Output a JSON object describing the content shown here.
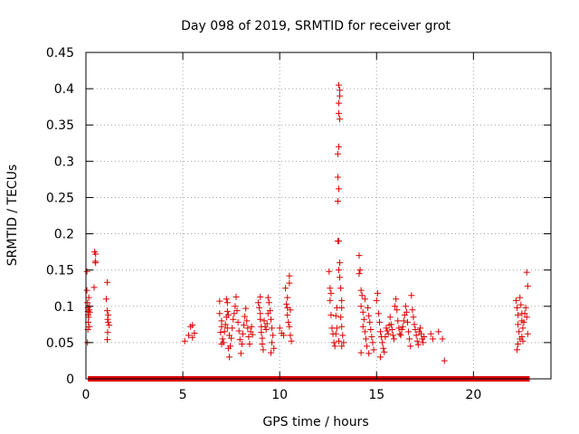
{
  "chart_data": {
    "type": "scatter",
    "title": "Day 098 of 2019, SRMTID for receiver grot",
    "xlabel": "GPS time / hours",
    "ylabel": "SRMTID / TECUs",
    "xlim": [
      0,
      24
    ],
    "ylim": [
      0,
      0.45
    ],
    "xticks": [
      0,
      5,
      10,
      15,
      20
    ],
    "xtick_labels": [
      "0",
      "5",
      "10",
      "15",
      "20"
    ],
    "yticks": [
      0,
      0.05,
      0.1,
      0.15,
      0.2,
      0.25,
      0.3,
      0.35,
      0.4,
      0.45
    ],
    "ytick_labels": [
      "0",
      "0.05",
      "0.1",
      "0.15",
      "0.2",
      "0.25",
      "0.3",
      "0.35",
      "0.4",
      "0.45"
    ],
    "grid": true,
    "marker": "+",
    "color": "#dd0000",
    "zero_band": {
      "x_start": 0.1,
      "x_end": 22.9,
      "y": 0
    },
    "points": [
      [
        0.05,
        0.148
      ],
      [
        0.05,
        0.122
      ],
      [
        0.08,
        0.105
      ],
      [
        0.1,
        0.098
      ],
      [
        0.1,
        0.093
      ],
      [
        0.12,
        0.088
      ],
      [
        0.12,
        0.078
      ],
      [
        0.1,
        0.068
      ],
      [
        0.08,
        0.05
      ],
      [
        0.15,
        0.112
      ],
      [
        0.14,
        0.085
      ],
      [
        0.16,
        0.095
      ],
      [
        0.18,
        0.1
      ],
      [
        0.2,
        0.092
      ],
      [
        0.18,
        0.072
      ],
      [
        0.45,
        0.175
      ],
      [
        0.5,
        0.172
      ],
      [
        0.48,
        0.162
      ],
      [
        0.5,
        0.16
      ],
      [
        0.42,
        0.126
      ],
      [
        1.1,
        0.133
      ],
      [
        1.05,
        0.11
      ],
      [
        1.1,
        0.094
      ],
      [
        1.15,
        0.088
      ],
      [
        1.12,
        0.082
      ],
      [
        1.15,
        0.078
      ],
      [
        1.2,
        0.074
      ],
      [
        1.12,
        0.064
      ],
      [
        1.1,
        0.054
      ],
      [
        5.1,
        0.052
      ],
      [
        5.3,
        0.06
      ],
      [
        5.4,
        0.072
      ],
      [
        5.5,
        0.074
      ],
      [
        5.6,
        0.063
      ],
      [
        5.5,
        0.057
      ],
      [
        6.9,
        0.107
      ],
      [
        6.9,
        0.09
      ],
      [
        7.0,
        0.08
      ],
      [
        7.0,
        0.072
      ],
      [
        6.95,
        0.064
      ],
      [
        7.05,
        0.055
      ],
      [
        7.0,
        0.048
      ],
      [
        7.1,
        0.05
      ],
      [
        7.15,
        0.065
      ],
      [
        7.2,
        0.075
      ],
      [
        7.25,
        0.085
      ],
      [
        7.3,
        0.093
      ],
      [
        7.25,
        0.11
      ],
      [
        7.3,
        0.105
      ],
      [
        7.35,
        0.088
      ],
      [
        7.3,
        0.07
      ],
      [
        7.4,
        0.06
      ],
      [
        7.35,
        0.042
      ],
      [
        7.4,
        0.03
      ],
      [
        7.45,
        0.045
      ],
      [
        7.5,
        0.056
      ],
      [
        7.55,
        0.07
      ],
      [
        7.6,
        0.082
      ],
      [
        7.65,
        0.09
      ],
      [
        7.7,
        0.1
      ],
      [
        7.75,
        0.113
      ],
      [
        7.8,
        0.094
      ],
      [
        7.85,
        0.078
      ],
      [
        7.9,
        0.066
      ],
      [
        7.95,
        0.054
      ],
      [
        8.0,
        0.035
      ],
      [
        8.05,
        0.048
      ],
      [
        8.1,
        0.062
      ],
      [
        8.15,
        0.074
      ],
      [
        8.2,
        0.086
      ],
      [
        8.25,
        0.097
      ],
      [
        8.3,
        0.08
      ],
      [
        8.35,
        0.07
      ],
      [
        8.4,
        0.058
      ],
      [
        8.45,
        0.048
      ],
      [
        8.5,
        0.065
      ],
      [
        8.55,
        0.072
      ],
      [
        8.6,
        0.061
      ],
      [
        8.9,
        0.105
      ],
      [
        8.95,
        0.098
      ],
      [
        9.0,
        0.09
      ],
      [
        9.0,
        0.082
      ],
      [
        9.05,
        0.072
      ],
      [
        9.05,
        0.064
      ],
      [
        9.1,
        0.056
      ],
      [
        9.1,
        0.048
      ],
      [
        9.15,
        0.04
      ],
      [
        9.0,
        0.113
      ],
      [
        9.2,
        0.08
      ],
      [
        9.25,
        0.072
      ],
      [
        9.3,
        0.068
      ],
      [
        9.35,
        0.076
      ],
      [
        9.4,
        0.09
      ],
      [
        9.45,
        0.105
      ],
      [
        9.4,
        0.112
      ],
      [
        9.5,
        0.094
      ],
      [
        9.55,
        0.082
      ],
      [
        9.6,
        0.07
      ],
      [
        9.65,
        0.06
      ],
      [
        9.6,
        0.05
      ],
      [
        9.7,
        0.042
      ],
      [
        9.55,
        0.036
      ],
      [
        10.0,
        0.07
      ],
      [
        10.1,
        0.063
      ],
      [
        10.2,
        0.06
      ],
      [
        10.3,
        0.125
      ],
      [
        10.35,
        0.103
      ],
      [
        10.4,
        0.098
      ],
      [
        10.4,
        0.088
      ],
      [
        10.45,
        0.078
      ],
      [
        10.5,
        0.132
      ],
      [
        10.5,
        0.142
      ],
      [
        10.55,
        0.095
      ],
      [
        10.5,
        0.072
      ],
      [
        10.55,
        0.06
      ],
      [
        10.6,
        0.052
      ],
      [
        10.4,
        0.112
      ],
      [
        12.55,
        0.148
      ],
      [
        12.6,
        0.125
      ],
      [
        12.65,
        0.118
      ],
      [
        12.6,
        0.108
      ],
      [
        12.65,
        0.088
      ],
      [
        12.7,
        0.07
      ],
      [
        12.75,
        0.062
      ],
      [
        12.8,
        0.05
      ],
      [
        12.85,
        0.045
      ],
      [
        12.9,
        0.062
      ],
      [
        12.95,
        0.07
      ],
      [
        12.9,
        0.087
      ],
      [
        12.95,
        0.098
      ],
      [
        13.0,
        0.245
      ],
      [
        13.05,
        0.262
      ],
      [
        13.0,
        0.278
      ],
      [
        13.0,
        0.31
      ],
      [
        13.05,
        0.32
      ],
      [
        13.1,
        0.358
      ],
      [
        13.05,
        0.366
      ],
      [
        13.05,
        0.38
      ],
      [
        13.1,
        0.39
      ],
      [
        13.1,
        0.398
      ],
      [
        13.05,
        0.405
      ],
      [
        13.0,
        0.19
      ],
      [
        13.05,
        0.19
      ],
      [
        13.1,
        0.16
      ],
      [
        13.05,
        0.15
      ],
      [
        13.1,
        0.14
      ],
      [
        13.15,
        0.125
      ],
      [
        13.2,
        0.108
      ],
      [
        13.2,
        0.098
      ],
      [
        13.15,
        0.085
      ],
      [
        13.2,
        0.072
      ],
      [
        13.25,
        0.06
      ],
      [
        13.3,
        0.05
      ],
      [
        13.2,
        0.045
      ],
      [
        13.05,
        0.052
      ],
      [
        14.1,
        0.17
      ],
      [
        14.15,
        0.15
      ],
      [
        14.1,
        0.145
      ],
      [
        14.2,
        0.122
      ],
      [
        14.25,
        0.115
      ],
      [
        14.2,
        0.1
      ],
      [
        14.3,
        0.092
      ],
      [
        14.35,
        0.082
      ],
      [
        14.3,
        0.072
      ],
      [
        14.4,
        0.065
      ],
      [
        14.45,
        0.055
      ],
      [
        14.5,
        0.045
      ],
      [
        14.4,
        0.11
      ],
      [
        14.55,
        0.098
      ],
      [
        14.6,
        0.087
      ],
      [
        14.65,
        0.078
      ],
      [
        14.7,
        0.068
      ],
      [
        14.75,
        0.058
      ],
      [
        14.8,
        0.05
      ],
      [
        14.85,
        0.04
      ],
      [
        14.6,
        0.035
      ],
      [
        14.2,
        0.036
      ],
      [
        15.0,
        0.108
      ],
      [
        15.05,
        0.118
      ],
      [
        15.1,
        0.09
      ],
      [
        15.15,
        0.078
      ],
      [
        15.2,
        0.065
      ],
      [
        15.25,
        0.058
      ],
      [
        15.3,
        0.05
      ],
      [
        15.35,
        0.042
      ],
      [
        15.2,
        0.03
      ],
      [
        15.4,
        0.037
      ],
      [
        15.45,
        0.058
      ],
      [
        15.5,
        0.07
      ],
      [
        15.55,
        0.066
      ],
      [
        15.6,
        0.062
      ],
      [
        15.65,
        0.074
      ],
      [
        15.7,
        0.085
      ],
      [
        15.75,
        0.075
      ],
      [
        15.8,
        0.068
      ],
      [
        15.85,
        0.06
      ],
      [
        15.9,
        0.055
      ],
      [
        15.95,
        0.1
      ],
      [
        16.0,
        0.11
      ],
      [
        16.05,
        0.095
      ],
      [
        16.1,
        0.08
      ],
      [
        16.15,
        0.07
      ],
      [
        16.2,
        0.062
      ],
      [
        16.25,
        0.06
      ],
      [
        16.3,
        0.068
      ],
      [
        16.35,
        0.072
      ],
      [
        16.4,
        0.08
      ],
      [
        16.45,
        0.088
      ],
      [
        16.5,
        0.1
      ],
      [
        16.55,
        0.092
      ],
      [
        16.6,
        0.078
      ],
      [
        16.65,
        0.065
      ],
      [
        16.7,
        0.055
      ],
      [
        16.75,
        0.045
      ],
      [
        16.8,
        0.115
      ],
      [
        16.85,
        0.095
      ],
      [
        16.9,
        0.085
      ],
      [
        16.95,
        0.075
      ],
      [
        17.0,
        0.068
      ],
      [
        17.05,
        0.06
      ],
      [
        17.1,
        0.052
      ],
      [
        17.15,
        0.047
      ],
      [
        17.2,
        0.065
      ],
      [
        17.25,
        0.07
      ],
      [
        17.3,
        0.062
      ],
      [
        17.35,
        0.055
      ],
      [
        17.4,
        0.05
      ],
      [
        17.45,
        0.058
      ],
      [
        17.8,
        0.062
      ],
      [
        17.9,
        0.055
      ],
      [
        18.2,
        0.065
      ],
      [
        18.4,
        0.055
      ],
      [
        18.5,
        0.025
      ],
      [
        22.2,
        0.108
      ],
      [
        22.25,
        0.098
      ],
      [
        22.3,
        0.088
      ],
      [
        22.3,
        0.075
      ],
      [
        22.35,
        0.065
      ],
      [
        22.4,
        0.055
      ],
      [
        22.3,
        0.048
      ],
      [
        22.25,
        0.04
      ],
      [
        22.4,
        0.112
      ],
      [
        22.45,
        0.102
      ],
      [
        22.5,
        0.09
      ],
      [
        22.5,
        0.08
      ],
      [
        22.55,
        0.07
      ],
      [
        22.5,
        0.058
      ],
      [
        22.55,
        0.052
      ],
      [
        22.6,
        0.078
      ],
      [
        22.65,
        0.09
      ],
      [
        22.7,
        0.098
      ],
      [
        22.75,
        0.147
      ],
      [
        22.8,
        0.128
      ],
      [
        22.75,
        0.085
      ],
      [
        22.8,
        0.062
      ]
    ]
  }
}
